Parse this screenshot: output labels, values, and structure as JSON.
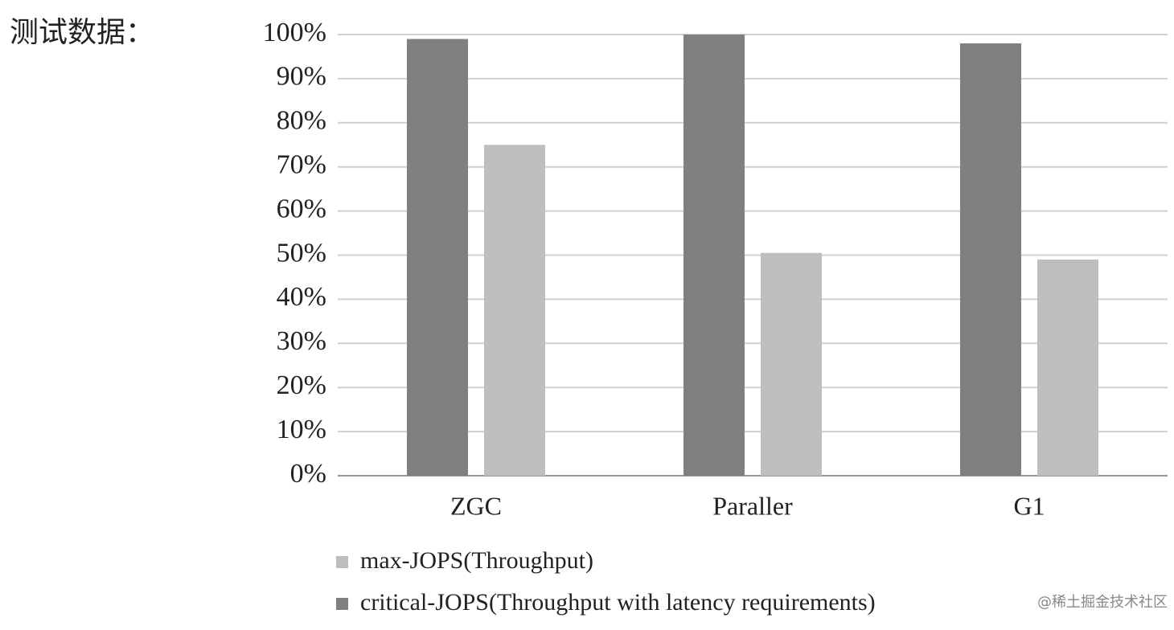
{
  "heading": "测试数据：",
  "watermark": "@稀土掘金技术社区",
  "chart_data": {
    "type": "bar",
    "categories": [
      "ZGC",
      "Paraller",
      "G1"
    ],
    "series": [
      {
        "name": "critical-JOPS(Throughput with latency requirements)",
        "color": "#7f8180",
        "values": [
          99,
          100,
          98
        ]
      },
      {
        "name": "max-JOPS(Throughput)",
        "color": "#bcbec0",
        "values": [
          75,
          50.5,
          49
        ]
      }
    ],
    "ylim": [
      0,
      100
    ],
    "yticks": [
      {
        "value": 0,
        "label": "0%"
      },
      {
        "value": 10,
        "label": "10%"
      },
      {
        "value": 20,
        "label": "20%"
      },
      {
        "value": 30,
        "label": "30%"
      },
      {
        "value": 40,
        "label": "40%"
      },
      {
        "value": 50,
        "label": "50%"
      },
      {
        "value": 60,
        "label": "60%"
      },
      {
        "value": 70,
        "label": "70%"
      },
      {
        "value": 80,
        "label": "80%"
      },
      {
        "value": 90,
        "label": "90%"
      },
      {
        "value": 100,
        "label": "100%"
      }
    ],
    "grid": true,
    "legend": "bottom"
  }
}
